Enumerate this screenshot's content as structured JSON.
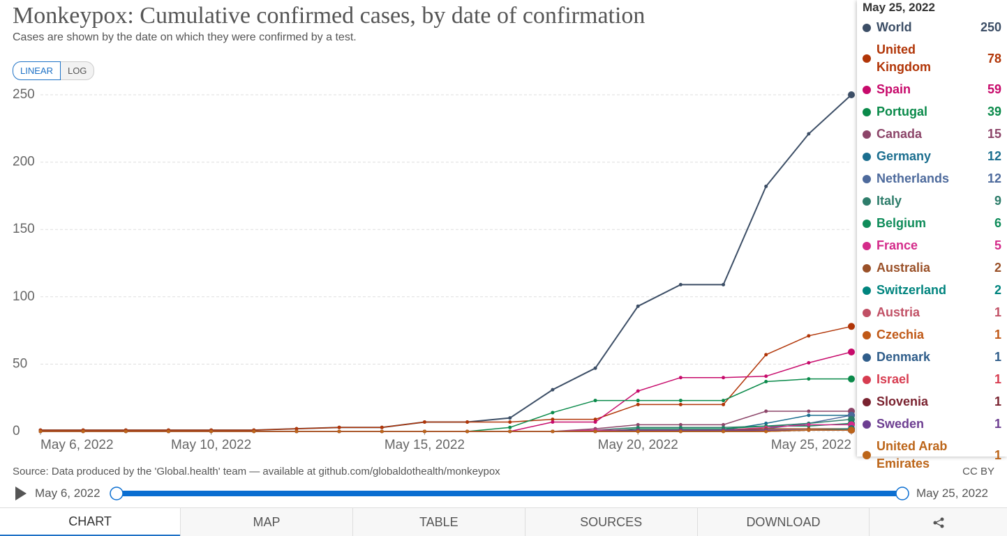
{
  "chart_data": {
    "type": "line",
    "title": "Monkeypox: Cumulative confirmed cases, by date of confirmation",
    "subtitle": "Cases are shown by the date on which they were confirmed by a test.",
    "x": [
      "May 6, 2022",
      "May 7, 2022",
      "May 8, 2022",
      "May 9, 2022",
      "May 10, 2022",
      "May 11, 2022",
      "May 12, 2022",
      "May 13, 2022",
      "May 14, 2022",
      "May 15, 2022",
      "May 16, 2022",
      "May 17, 2022",
      "May 18, 2022",
      "May 19, 2022",
      "May 20, 2022",
      "May 21, 2022",
      "May 22, 2022",
      "May 23, 2022",
      "May 24, 2022",
      "May 25, 2022"
    ],
    "xticks": [
      "May 6, 2022",
      "May 10, 2022",
      "May 15, 2022",
      "May 20, 2022",
      "May 25, 2022"
    ],
    "ylim": [
      0,
      250
    ],
    "yticks": [
      0,
      50,
      100,
      150,
      200,
      250
    ],
    "grid": true,
    "series": [
      {
        "name": "World",
        "color": "#3c4e66",
        "values": [
          1,
          1,
          1,
          1,
          1,
          1,
          2,
          3,
          3,
          7,
          7,
          10,
          31,
          47,
          93,
          109,
          109,
          182,
          221,
          250
        ]
      },
      {
        "name": "United Kingdom",
        "color": "#b13507",
        "values": [
          1,
          1,
          1,
          1,
          1,
          1,
          2,
          3,
          3,
          7,
          7,
          7,
          9,
          9,
          20,
          20,
          20,
          57,
          71,
          78
        ]
      },
      {
        "name": "Spain",
        "color": "#c70a6b",
        "values": [
          0,
          0,
          0,
          0,
          0,
          0,
          0,
          0,
          0,
          0,
          0,
          0,
          7,
          7,
          30,
          40,
          40,
          41,
          51,
          59
        ]
      },
      {
        "name": "Portugal",
        "color": "#0a8a4a",
        "values": [
          0,
          0,
          0,
          0,
          0,
          0,
          0,
          0,
          0,
          0,
          0,
          3,
          14,
          23,
          23,
          23,
          23,
          37,
          39,
          39
        ]
      },
      {
        "name": "Canada",
        "color": "#8c4569",
        "values": [
          0,
          0,
          0,
          0,
          0,
          0,
          0,
          0,
          0,
          0,
          0,
          0,
          0,
          2,
          5,
          5,
          5,
          15,
          15,
          15
        ]
      },
      {
        "name": "Germany",
        "color": "#1b6e8f",
        "values": [
          0,
          0,
          0,
          0,
          0,
          0,
          0,
          0,
          0,
          0,
          0,
          0,
          0,
          0,
          1,
          1,
          1,
          6,
          12,
          12
        ]
      },
      {
        "name": "Netherlands",
        "color": "#4d6a9c",
        "values": [
          0,
          0,
          0,
          0,
          0,
          0,
          0,
          0,
          0,
          0,
          0,
          0,
          0,
          0,
          1,
          1,
          1,
          2,
          6,
          12
        ]
      },
      {
        "name": "Italy",
        "color": "#2e7d6b",
        "values": [
          0,
          0,
          0,
          0,
          0,
          0,
          0,
          0,
          0,
          0,
          0,
          0,
          0,
          1,
          3,
          3,
          3,
          4,
          6,
          9
        ]
      },
      {
        "name": "Belgium",
        "color": "#0f8c5a",
        "values": [
          0,
          0,
          0,
          0,
          0,
          0,
          0,
          0,
          0,
          0,
          0,
          0,
          0,
          0,
          2,
          2,
          2,
          4,
          4,
          6
        ]
      },
      {
        "name": "France",
        "color": "#d42b8a",
        "values": [
          0,
          0,
          0,
          0,
          0,
          0,
          0,
          0,
          0,
          0,
          0,
          0,
          0,
          1,
          1,
          1,
          1,
          3,
          5,
          5
        ]
      },
      {
        "name": "Australia",
        "color": "#9a5129",
        "values": [
          0,
          0,
          0,
          0,
          0,
          0,
          0,
          0,
          0,
          0,
          0,
          0,
          0,
          0,
          1,
          1,
          1,
          2,
          2,
          2
        ]
      },
      {
        "name": "Switzerland",
        "color": "#00847e",
        "values": [
          0,
          0,
          0,
          0,
          0,
          0,
          0,
          0,
          0,
          0,
          0,
          0,
          0,
          0,
          0,
          1,
          1,
          1,
          1,
          2
        ]
      },
      {
        "name": "Austria",
        "color": "#c15065",
        "values": [
          0,
          0,
          0,
          0,
          0,
          0,
          0,
          0,
          0,
          0,
          0,
          0,
          0,
          0,
          0,
          0,
          1,
          1,
          1,
          1
        ]
      },
      {
        "name": "Czechia",
        "color": "#c05917",
        "values": [
          0,
          0,
          0,
          0,
          0,
          0,
          0,
          0,
          0,
          0,
          0,
          0,
          0,
          0,
          0,
          0,
          0,
          0,
          1,
          1
        ]
      },
      {
        "name": "Denmark",
        "color": "#2f5d8a",
        "values": [
          0,
          0,
          0,
          0,
          0,
          0,
          0,
          0,
          0,
          0,
          0,
          0,
          0,
          0,
          0,
          0,
          0,
          1,
          1,
          1
        ]
      },
      {
        "name": "Israel",
        "color": "#d73c50",
        "values": [
          0,
          0,
          0,
          0,
          0,
          0,
          0,
          0,
          0,
          0,
          0,
          0,
          0,
          0,
          0,
          1,
          1,
          1,
          1,
          1
        ]
      },
      {
        "name": "Slovenia",
        "color": "#7a2330",
        "values": [
          0,
          0,
          0,
          0,
          0,
          0,
          0,
          0,
          0,
          0,
          0,
          0,
          0,
          0,
          0,
          0,
          0,
          0,
          1,
          1
        ]
      },
      {
        "name": "Sweden",
        "color": "#6d3e91",
        "values": [
          0,
          0,
          0,
          0,
          0,
          0,
          0,
          0,
          0,
          0,
          0,
          0,
          0,
          0,
          1,
          1,
          1,
          1,
          1,
          1
        ]
      },
      {
        "name": "United Arab Emirates",
        "color": "#bc6519",
        "values": [
          0,
          0,
          0,
          0,
          0,
          0,
          0,
          0,
          0,
          0,
          0,
          0,
          0,
          0,
          0,
          0,
          0,
          0,
          1,
          1
        ]
      }
    ],
    "scale_buttons": [
      "LINEAR",
      "LOG"
    ],
    "source": "Source: Data produced by the 'Global.health' team — available at github.com/globaldothealth/monkeypox",
    "license": "CC BY",
    "tabs": [
      "CHART",
      "MAP",
      "TABLE",
      "SOURCES",
      "DOWNLOAD"
    ]
  }
}
